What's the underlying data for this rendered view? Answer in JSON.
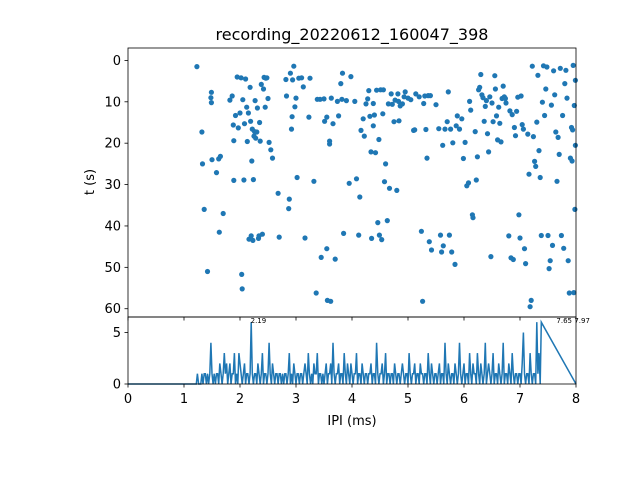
{
  "chart_data": [
    {
      "type": "scatter",
      "title": "recording_20220612_160047_398",
      "xlabel": "",
      "ylabel": "t (s)",
      "xlim": [
        0,
        8
      ],
      "ylim": [
        62,
        -3
      ],
      "y_inverted": true,
      "y_ticks": [
        0,
        10,
        20,
        30,
        40,
        50,
        60
      ],
      "x_ticks_shared_with_histogram": true,
      "grid": false,
      "color": "#1f77b4",
      "points": [
        [
          1.23,
          1.5
        ],
        [
          1.32,
          17.3
        ],
        [
          1.33,
          25
        ],
        [
          1.36,
          36
        ],
        [
          1.42,
          51
        ],
        [
          1.48,
          9
        ],
        [
          1.49,
          10.2
        ],
        [
          1.49,
          7.7
        ],
        [
          1.5,
          24
        ],
        [
          1.58,
          27.1
        ],
        [
          1.62,
          23.8
        ],
        [
          1.63,
          41.5
        ],
        [
          1.65,
          23.2
        ],
        [
          1.7,
          37
        ],
        [
          1.82,
          9.6
        ],
        [
          1.86,
          8.6
        ],
        [
          1.88,
          15.6
        ],
        [
          1.89,
          29
        ],
        [
          1.89,
          19.4
        ],
        [
          1.92,
          13.3
        ],
        [
          1.95,
          4
        ],
        [
          1.97,
          16.3
        ],
        [
          2.0,
          12.7
        ],
        [
          2.02,
          4.2
        ],
        [
          2.03,
          51.7
        ],
        [
          2.04,
          55.2
        ],
        [
          2.05,
          9.5
        ],
        [
          2.07,
          28.9
        ],
        [
          2.08,
          15.3
        ],
        [
          2.1,
          4.5
        ],
        [
          2.12,
          11.3
        ],
        [
          2.13,
          19.6
        ],
        [
          2.15,
          12.7
        ],
        [
          2.16,
          43.2
        ],
        [
          2.18,
          6.5
        ],
        [
          2.19,
          14.7
        ],
        [
          2.2,
          42.4
        ],
        [
          2.21,
          24.3
        ],
        [
          2.22,
          16.6
        ],
        [
          2.23,
          43.5
        ],
        [
          2.24,
          28.8
        ],
        [
          2.25,
          18.3
        ],
        [
          2.26,
          17.2
        ],
        [
          2.27,
          9.7
        ],
        [
          2.28,
          18.8
        ],
        [
          2.3,
          17.3
        ],
        [
          2.31,
          11.5
        ],
        [
          2.33,
          43
        ],
        [
          2.34,
          42.4
        ],
        [
          2.35,
          15
        ],
        [
          2.36,
          19.5
        ],
        [
          2.38,
          5.8
        ],
        [
          2.4,
          42
        ],
        [
          2.42,
          6.9
        ],
        [
          2.43,
          4.1
        ],
        [
          2.45,
          11.3
        ],
        [
          2.46,
          4.3
        ],
        [
          2.48,
          4.2
        ],
        [
          2.5,
          9.2
        ],
        [
          2.52,
          19.8
        ],
        [
          2.55,
          21.6
        ],
        [
          2.58,
          23.6
        ],
        [
          2.68,
          32.1
        ],
        [
          2.7,
          42.7
        ],
        [
          2.82,
          4.6
        ],
        [
          2.83,
          8.6
        ],
        [
          2.87,
          35.8
        ],
        [
          2.88,
          33.5
        ],
        [
          2.9,
          3.1
        ],
        [
          2.92,
          16.6
        ],
        [
          2.93,
          13.6
        ],
        [
          2.94,
          4.7
        ],
        [
          2.96,
          1.4
        ],
        [
          2.98,
          11.2
        ],
        [
          3.0,
          9.1
        ],
        [
          3.02,
          28.3
        ],
        [
          3.05,
          4.3
        ],
        [
          3.1,
          4.2
        ],
        [
          3.13,
          6.4
        ],
        [
          3.16,
          42.9
        ],
        [
          3.23,
          13.7
        ],
        [
          3.25,
          4.3
        ],
        [
          3.32,
          29.2
        ],
        [
          3.36,
          56.2
        ],
        [
          3.38,
          9.4
        ],
        [
          3.43,
          9.4
        ],
        [
          3.45,
          47.6
        ],
        [
          3.5,
          9.3
        ],
        [
          3.51,
          14.7
        ],
        [
          3.55,
          45.5
        ],
        [
          3.55,
          13.7
        ],
        [
          3.56,
          58
        ],
        [
          3.6,
          19.5
        ],
        [
          3.6,
          20.2
        ],
        [
          3.62,
          58.2
        ],
        [
          3.63,
          9.1
        ],
        [
          3.66,
          15.3
        ],
        [
          3.7,
          48
        ],
        [
          3.74,
          9.9
        ],
        [
          3.76,
          13.4
        ],
        [
          3.8,
          5.6
        ],
        [
          3.82,
          9.4
        ],
        [
          3.83,
          3.1
        ],
        [
          3.85,
          41.8
        ],
        [
          3.9,
          9.7
        ],
        [
          3.95,
          29.7
        ],
        [
          3.98,
          3.9
        ],
        [
          4.05,
          9.9
        ],
        [
          4.08,
          28.6
        ],
        [
          4.12,
          42.2
        ],
        [
          4.14,
          33
        ],
        [
          4.16,
          16.9
        ],
        [
          4.2,
          14.1
        ],
        [
          4.22,
          18.3
        ],
        [
          4.25,
          10.5
        ],
        [
          4.28,
          9.3
        ],
        [
          4.3,
          7.3
        ],
        [
          4.32,
          13.5
        ],
        [
          4.34,
          22.1
        ],
        [
          4.35,
          43
        ],
        [
          4.38,
          15.8
        ],
        [
          4.38,
          10.4
        ],
        [
          4.4,
          13.2
        ],
        [
          4.42,
          22.3
        ],
        [
          4.44,
          7.2
        ],
        [
          4.46,
          39.2
        ],
        [
          4.48,
          19.1
        ],
        [
          4.49,
          42.2
        ],
        [
          4.51,
          7.1
        ],
        [
          4.53,
          43.3
        ],
        [
          4.55,
          12.9
        ],
        [
          4.56,
          7.1
        ],
        [
          4.58,
          29.3
        ],
        [
          4.6,
          25
        ],
        [
          4.63,
          38.7
        ],
        [
          4.65,
          10.5
        ],
        [
          4.67,
          30.9
        ],
        [
          4.7,
          8.1
        ],
        [
          4.72,
          10.6
        ],
        [
          4.75,
          14.8
        ],
        [
          4.77,
          9.6
        ],
        [
          4.8,
          31.4
        ],
        [
          4.82,
          8.1
        ],
        [
          4.83,
          9.9
        ],
        [
          4.84,
          14.6
        ],
        [
          4.86,
          11
        ],
        [
          4.9,
          10.5
        ],
        [
          4.93,
          8.8
        ],
        [
          4.95,
          7.6
        ],
        [
          5.0,
          9.1
        ],
        [
          5.05,
          9.5
        ],
        [
          5.1,
          16.9
        ],
        [
          5.12,
          16.8
        ],
        [
          5.14,
          8.1
        ],
        [
          5.2,
          8.8
        ],
        [
          5.24,
          41.3
        ],
        [
          5.26,
          58.2
        ],
        [
          5.28,
          10.4
        ],
        [
          5.3,
          8.6
        ],
        [
          5.32,
          16.7
        ],
        [
          5.34,
          23.6
        ],
        [
          5.36,
          8.5
        ],
        [
          5.38,
          43.8
        ],
        [
          5.4,
          8.5
        ],
        [
          5.42,
          45.8
        ],
        [
          5.5,
          10.7
        ],
        [
          5.55,
          16.5
        ],
        [
          5.58,
          42.2
        ],
        [
          5.6,
          46.3
        ],
        [
          5.62,
          20.5
        ],
        [
          5.63,
          44.8
        ],
        [
          5.66,
          16.6
        ],
        [
          5.7,
          14.8
        ],
        [
          5.72,
          7.6
        ],
        [
          5.74,
          42.2
        ],
        [
          5.76,
          16.6
        ],
        [
          5.78,
          46.3
        ],
        [
          5.8,
          19.9
        ],
        [
          5.84,
          49.3
        ],
        [
          5.86,
          15.8
        ],
        [
          5.88,
          13.4
        ],
        [
          5.92,
          16.6
        ],
        [
          5.96,
          14.1
        ],
        [
          5.99,
          23.7
        ],
        [
          6.02,
          19.8
        ],
        [
          6.05,
          30.3
        ],
        [
          6.08,
          29.6
        ],
        [
          6.1,
          9.9
        ],
        [
          6.12,
          12
        ],
        [
          6.15,
          37.3
        ],
        [
          6.16,
          38
        ],
        [
          6.2,
          17.2
        ],
        [
          6.22,
          28.9
        ],
        [
          6.24,
          23.3
        ],
        [
          6.26,
          7.1
        ],
        [
          6.28,
          6.5
        ],
        [
          6.3,
          3.4
        ],
        [
          6.32,
          8.3
        ],
        [
          6.34,
          9
        ],
        [
          6.36,
          14.7
        ],
        [
          6.38,
          11.1
        ],
        [
          6.4,
          9.7
        ],
        [
          6.42,
          17.7
        ],
        [
          6.44,
          22.1
        ],
        [
          6.46,
          8.8
        ],
        [
          6.48,
          47.4
        ],
        [
          6.5,
          10.3
        ],
        [
          6.52,
          14.8
        ],
        [
          6.55,
          3.7
        ],
        [
          6.56,
          6.9
        ],
        [
          6.58,
          13.4
        ],
        [
          6.6,
          19.2
        ],
        [
          6.62,
          11.3
        ],
        [
          6.64,
          15.2
        ],
        [
          6.66,
          19.7
        ],
        [
          6.68,
          9.2
        ],
        [
          6.7,
          6.2
        ],
        [
          6.72,
          8.8
        ],
        [
          6.74,
          9.2
        ],
        [
          6.75,
          10.3
        ],
        [
          6.8,
          42.4
        ],
        [
          6.82,
          12.2
        ],
        [
          6.84,
          47.7
        ],
        [
          6.86,
          13.1
        ],
        [
          6.88,
          48.1
        ],
        [
          6.9,
          16.2
        ],
        [
          6.92,
          18.2
        ],
        [
          6.94,
          12.3
        ],
        [
          6.96,
          8.9
        ],
        [
          6.98,
          37.3
        ],
        [
          7.0,
          42.9
        ],
        [
          7.02,
          8.6
        ],
        [
          7.04,
          15.5
        ],
        [
          7.06,
          16.6
        ],
        [
          7.08,
          45.5
        ],
        [
          7.1,
          49.1
        ],
        [
          7.14,
          17.8
        ],
        [
          7.16,
          27.5
        ],
        [
          7.18,
          59.5
        ],
        [
          7.2,
          58
        ],
        [
          7.22,
          1.4
        ],
        [
          7.24,
          18.4
        ],
        [
          7.26,
          24.4
        ],
        [
          7.28,
          25.6
        ],
        [
          7.3,
          14.9
        ],
        [
          7.32,
          3.6
        ],
        [
          7.34,
          21.8
        ],
        [
          7.36,
          28.3
        ],
        [
          7.38,
          42.3
        ],
        [
          7.4,
          10.1
        ],
        [
          7.42,
          1.3
        ],
        [
          7.44,
          13.3
        ],
        [
          7.46,
          6.9
        ],
        [
          7.48,
          1.6
        ],
        [
          7.5,
          42.3
        ],
        [
          7.52,
          50.3
        ],
        [
          7.54,
          48.4
        ],
        [
          7.56,
          10.8
        ],
        [
          7.58,
          44.7
        ],
        [
          7.6,
          2.5
        ],
        [
          7.62,
          8.3
        ],
        [
          7.64,
          17.3
        ],
        [
          7.66,
          29.2
        ],
        [
          7.68,
          18.6
        ],
        [
          7.7,
          22.7
        ],
        [
          7.72,
          1.9
        ],
        [
          7.74,
          42.3
        ],
        [
          7.76,
          13.3
        ],
        [
          7.78,
          45.4
        ],
        [
          7.8,
          5.6
        ],
        [
          7.82,
          2.4
        ],
        [
          7.84,
          9.1
        ],
        [
          7.86,
          48.4
        ],
        [
          7.88,
          56.2
        ],
        [
          7.9,
          23.6
        ],
        [
          7.92,
          16.2
        ],
        [
          7.93,
          24.3
        ],
        [
          7.94,
          16.8
        ],
        [
          7.95,
          1.2
        ],
        [
          7.96,
          56.1
        ],
        [
          7.97,
          10.9
        ],
        [
          7.98,
          36
        ],
        [
          7.99,
          4.8
        ],
        [
          7.99,
          20.5
        ]
      ]
    },
    {
      "type": "line",
      "title": "",
      "xlabel": "IPI (ms)",
      "ylabel": "",
      "xlim": [
        0,
        8
      ],
      "ylim": [
        0,
        6.5
      ],
      "x_ticks": [
        0,
        1,
        2,
        3,
        4,
        5,
        6,
        7,
        8
      ],
      "y_ticks": [
        0,
        5
      ],
      "grid": false,
      "color": "#1f77b4",
      "bin_width_ms": 0.02,
      "bins_start_ms": 0,
      "peak_annotations": [
        {
          "x": 2.19,
          "y": 6,
          "label": "2.19"
        },
        {
          "x": 7.65,
          "y": 6,
          "label": "7.65"
        },
        {
          "x": 7.97,
          "y": 6,
          "label": "7.97"
        }
      ],
      "counts": [
        0,
        0,
        0,
        0,
        0,
        0,
        0,
        0,
        0,
        0,
        0,
        0,
        0,
        0,
        0,
        0,
        0,
        0,
        0,
        0,
        0,
        0,
        0,
        0,
        0,
        0,
        0,
        0,
        0,
        0,
        0,
        0,
        0,
        0,
        0,
        0,
        0,
        0,
        0,
        0,
        0,
        0,
        0,
        0,
        0,
        0,
        0,
        0,
        0,
        0,
        0,
        0,
        0,
        0,
        0,
        0,
        0,
        0,
        0,
        0,
        0,
        0,
        1,
        0,
        0,
        0,
        1,
        0,
        1,
        1,
        0,
        1,
        0,
        1,
        4,
        1,
        0,
        1,
        0,
        1,
        1,
        0,
        2,
        1,
        0,
        1,
        3,
        1,
        2,
        0,
        1,
        2,
        0,
        1,
        1,
        3,
        0,
        1,
        0,
        3,
        2,
        1,
        0,
        1,
        2,
        0,
        1,
        1,
        0,
        1,
        6,
        1,
        0,
        1,
        1,
        0,
        2,
        1,
        0,
        1,
        3,
        0,
        1,
        1,
        0,
        1,
        4,
        1,
        0,
        2,
        1,
        0,
        1,
        1,
        0,
        1,
        1,
        0,
        1,
        0,
        1,
        1,
        0,
        1,
        3,
        0,
        1,
        0,
        2,
        1,
        0,
        1,
        1,
        0,
        1,
        1,
        0,
        1,
        2,
        1,
        0,
        3,
        1,
        0,
        1,
        0,
        2,
        1,
        1,
        3,
        0,
        1,
        1,
        0,
        1,
        0,
        1,
        2,
        0,
        1,
        1,
        2,
        0,
        4,
        1,
        0,
        1,
        1,
        2,
        0,
        1,
        1,
        0,
        3,
        1,
        0,
        2,
        1,
        0,
        2,
        1,
        0,
        1,
        1,
        3,
        0,
        1,
        1,
        0,
        2,
        1,
        0,
        1,
        1,
        0,
        1,
        1,
        2,
        0,
        1,
        1,
        0,
        4,
        1,
        0,
        1,
        1,
        2,
        0,
        1,
        3,
        0,
        1,
        1,
        0,
        1,
        1,
        0,
        2,
        1,
        0,
        1,
        1,
        0,
        1,
        2,
        1,
        0,
        1,
        1,
        0,
        3,
        1,
        0,
        1,
        1,
        2,
        0,
        1,
        1,
        0,
        2,
        1,
        1,
        0,
        1,
        1,
        0,
        3,
        1,
        0,
        2,
        1,
        0,
        1,
        1,
        0,
        1,
        2,
        0,
        1,
        1,
        0,
        4,
        1,
        0,
        2,
        1,
        0,
        1,
        1,
        0,
        2,
        1,
        0,
        1,
        4,
        1,
        0,
        1,
        2,
        0,
        1,
        1,
        0,
        3,
        1,
        0,
        2,
        1,
        1,
        0,
        3,
        1,
        0,
        2,
        1,
        0,
        1,
        4,
        0,
        1,
        2,
        1,
        0,
        1,
        3,
        0,
        1,
        1,
        0,
        2,
        1,
        0,
        1,
        4,
        0,
        1,
        1,
        0,
        2,
        1,
        0,
        3,
        1,
        0,
        1,
        1,
        0,
        1,
        1,
        0,
        2,
        5,
        1,
        0,
        1,
        1,
        0,
        3,
        1,
        0,
        1,
        1,
        0,
        6,
        1,
        3,
        0,
        6
      ]
    }
  ]
}
